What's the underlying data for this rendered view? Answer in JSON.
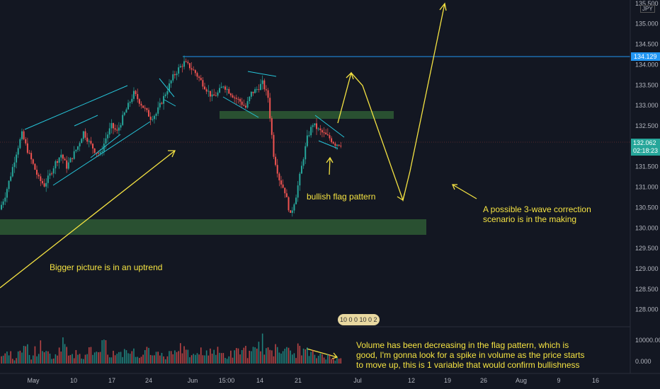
{
  "chart_data": {
    "type": "candlestick",
    "symbol_currency": "JPY",
    "y_ticks": [
      "135.500",
      "135.000",
      "134.500",
      "134.000",
      "133.500",
      "133.000",
      "132.500",
      "132.000",
      "131.500",
      "131.000",
      "130.500",
      "130.000",
      "129.500",
      "129.000",
      "128.500",
      "128.000"
    ],
    "x_ticks": [
      "May",
      "10",
      "17",
      "24",
      "Jun",
      "15:00",
      "14",
      "21",
      "Jul",
      "12",
      "19",
      "26",
      "Aug",
      "9",
      "16"
    ],
    "volume_ticks": [
      "10000.00k",
      "0.000"
    ],
    "ylim": [
      127.7,
      135.55
    ],
    "resistance_price": "134.129",
    "last_price": "132.062",
    "countdown": "02:18:23",
    "price_series": [
      130.45,
      130.8,
      131.3,
      131.85,
      132.3,
      131.9,
      131.55,
      131.2,
      131.05,
      131.3,
      131.6,
      131.8,
      131.5,
      131.75,
      132.0,
      132.35,
      132.1,
      131.9,
      131.8,
      132.2,
      132.5,
      132.35,
      132.7,
      133.0,
      133.3,
      133.1,
      132.9,
      132.7,
      132.8,
      133.1,
      133.4,
      133.7,
      133.9,
      134.05,
      133.95,
      133.8,
      133.6,
      133.4,
      133.2,
      133.3,
      133.5,
      133.35,
      133.2,
      133.1,
      132.95,
      133.3,
      133.4,
      133.55,
      133.2,
      131.8,
      131.2,
      130.9,
      130.3,
      130.8,
      131.5,
      132.2,
      132.55,
      132.4,
      132.3,
      132.2,
      132.06
    ],
    "volume_series": [
      3,
      5,
      2,
      4,
      6,
      3,
      5,
      7,
      4,
      3,
      6,
      8,
      5,
      4,
      3,
      6,
      5,
      4,
      7,
      3,
      5,
      4,
      6,
      5,
      3,
      4,
      5,
      6,
      4,
      3,
      5,
      7,
      6,
      4,
      3,
      5,
      4,
      6,
      5,
      4,
      3,
      4,
      5,
      6,
      4,
      5,
      9,
      6,
      4,
      8,
      7,
      5,
      4,
      6,
      5,
      4,
      3,
      4,
      3,
      2,
      3
    ],
    "annotations": [
      {
        "id": "bigger-picture",
        "text": "Bigger picture is in an uptrend"
      },
      {
        "id": "bullish-flag",
        "text": "bullish flag pattern"
      },
      {
        "id": "correction",
        "text": "A possible 3-wave correction scenario is in the making"
      },
      {
        "id": "volume-note",
        "text": "Volume has been decreasing in the flag pattern, which is good, I'm gonna look for a spike in volume as the price starts to move up, this is 1 variable that would confirm bullishness"
      }
    ],
    "indicator_badge": "10 0 0 10 0 2",
    "colors": {
      "up": "#26a69a",
      "down": "#ef5350",
      "annotation": "#f5e342",
      "trendline": "#26c6da",
      "resistance": "#2196f3",
      "zone": "#2e5a34",
      "background": "#131722",
      "price_tag": "#26a69a"
    }
  }
}
